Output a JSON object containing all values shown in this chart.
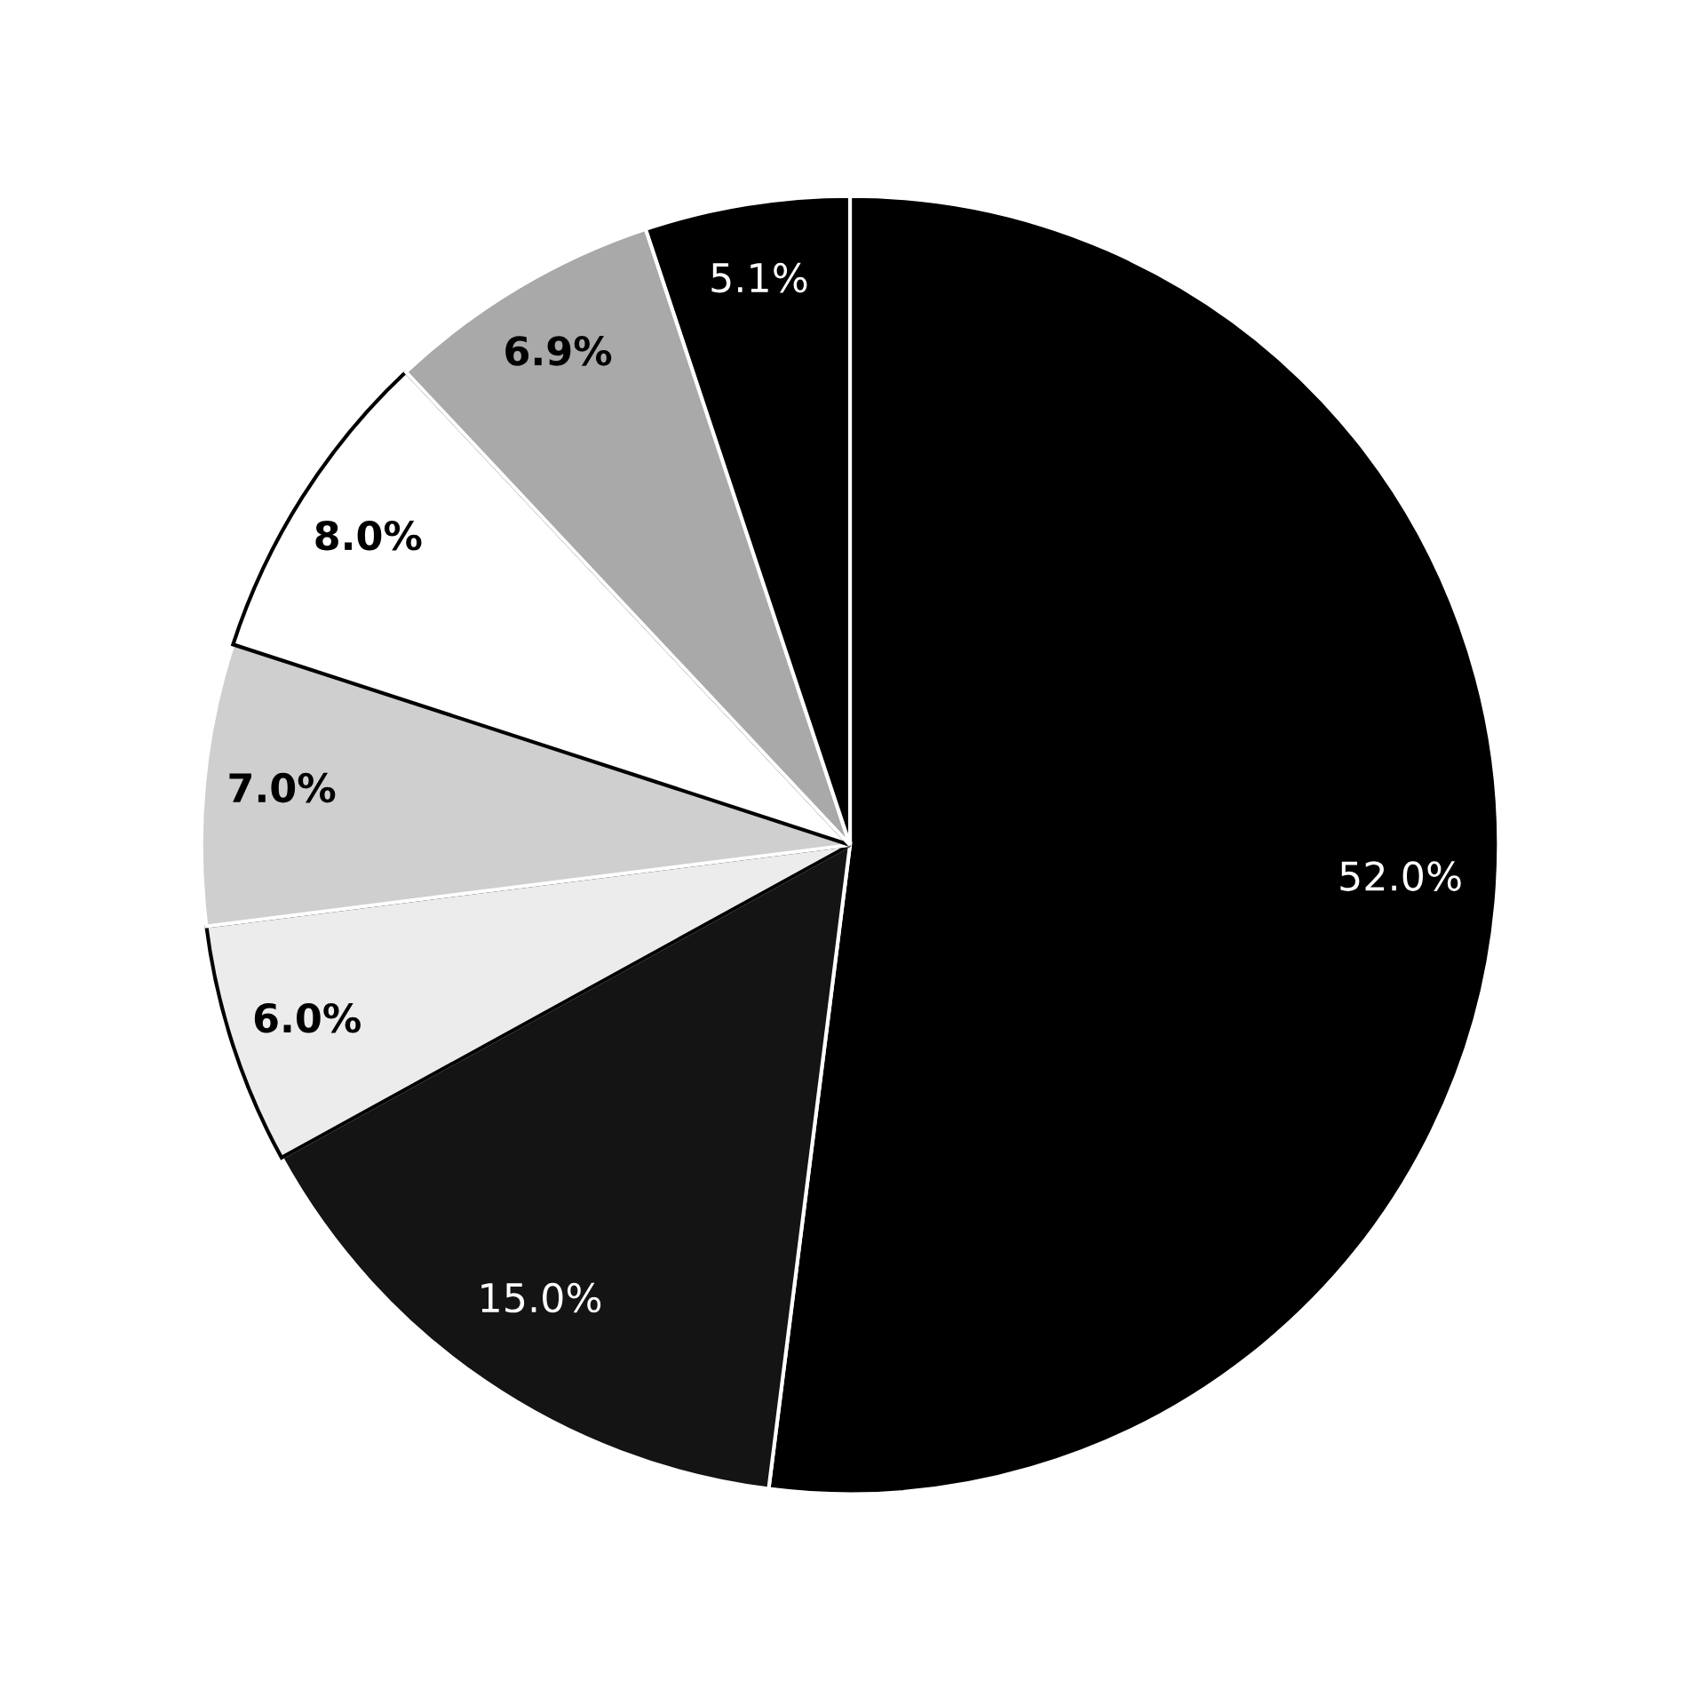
{
  "chart_data": {
    "type": "pie",
    "categories": [
      null,
      null,
      null,
      null,
      null,
      null,
      null
    ],
    "values": [
      52.0,
      15.0,
      6.0,
      7.0,
      8.0,
      6.9,
      5.1
    ],
    "colors": [
      "#000000",
      "#141414",
      "#ececec",
      "#cfcfcf",
      "#ffffff",
      "#a9a9a9",
      "#000000"
    ],
    "value_labels": [
      "52.0%",
      "15.0%",
      "6.0%",
      "7.0%",
      "8.0%",
      "6.9%",
      "5.1%"
    ]
  }
}
